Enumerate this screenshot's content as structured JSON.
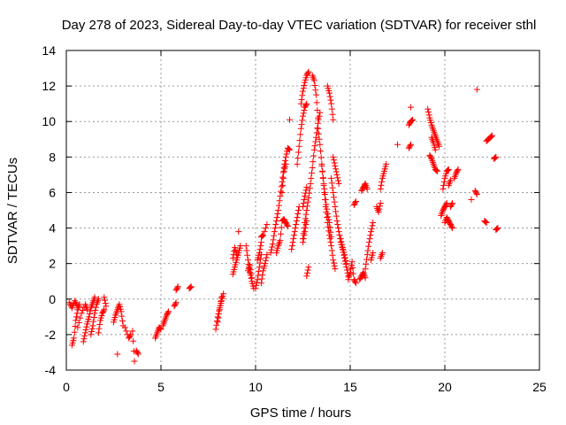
{
  "chart_data": {
    "type": "scatter",
    "title": "Day 278 of 2023, Sidereal Day-to-day VTEC variation (SDTVAR) for receiver sthl",
    "xlabel": "GPS time / hours",
    "ylabel": "SDTVAR / TECUs",
    "xlim": [
      0,
      25
    ],
    "ylim": [
      -4,
      14
    ],
    "x_ticks": [
      0,
      5,
      10,
      15,
      20,
      25
    ],
    "y_ticks": [
      -4,
      -2,
      0,
      2,
      4,
      6,
      8,
      10,
      12,
      14
    ],
    "marker": "+",
    "color": "#ff0000",
    "grid": true,
    "segments": [
      [
        [
          0.15,
          -0.2
        ],
        [
          0.3,
          -0.5
        ],
        [
          0.45,
          -0.1
        ],
        [
          0.6,
          -0.4
        ]
      ],
      [
        [
          0.3,
          -2.6
        ],
        [
          0.4,
          -2.2
        ],
        [
          0.5,
          -1.2
        ],
        [
          0.6,
          -0.6
        ],
        [
          0.7,
          -0.3
        ]
      ],
      [
        [
          0.6,
          -1.6
        ],
        [
          0.8,
          -0.8
        ],
        [
          1.0,
          -0.3
        ],
        [
          1.1,
          -0.6
        ]
      ],
      [
        [
          0.9,
          -2.4
        ],
        [
          1.0,
          -1.9
        ],
        [
          1.1,
          -1.4
        ],
        [
          1.2,
          -1.0
        ],
        [
          1.3,
          -0.5
        ],
        [
          1.4,
          -0.2
        ],
        [
          1.5,
          0.1
        ]
      ],
      [
        [
          1.3,
          -2.0
        ],
        [
          1.4,
          -1.5
        ],
        [
          1.5,
          -0.8
        ],
        [
          1.6,
          -0.3
        ],
        [
          1.7,
          0.0
        ]
      ],
      [
        [
          1.7,
          -1.9
        ],
        [
          1.8,
          -1.2
        ],
        [
          1.9,
          -0.8
        ],
        [
          2.0,
          -0.6
        ]
      ],
      [
        [
          2.0,
          0.1
        ],
        [
          2.1,
          -0.4
        ]
      ],
      [
        [
          2.5,
          -1.3
        ],
        [
          2.6,
          -0.9
        ],
        [
          2.7,
          -0.6
        ],
        [
          2.8,
          -0.3
        ],
        [
          2.9,
          -0.7
        ],
        [
          3.0,
          -1.5
        ]
      ],
      [
        [
          2.7,
          -3.1
        ]
      ],
      [
        [
          3.1,
          -1.6
        ],
        [
          3.3,
          -2.2
        ],
        [
          3.4,
          -2.0
        ]
      ],
      [
        [
          3.5,
          -1.8
        ],
        [
          3.6,
          -3.5
        ]
      ],
      [
        [
          3.7,
          -2.9
        ],
        [
          3.8,
          -3.1
        ]
      ],
      [
        [
          4.7,
          -2.2
        ],
        [
          4.8,
          -1.9
        ],
        [
          4.9,
          -1.6
        ],
        [
          5.0,
          -1.7
        ]
      ],
      [
        [
          5.1,
          -1.5
        ],
        [
          5.2,
          -1.2
        ],
        [
          5.3,
          -0.9
        ],
        [
          5.4,
          -0.7
        ]
      ],
      [
        [
          5.7,
          -0.4
        ],
        [
          5.8,
          -0.2
        ]
      ],
      [
        [
          5.8,
          0.5
        ],
        [
          5.9,
          0.7
        ]
      ],
      [
        [
          6.5,
          0.6
        ],
        [
          6.6,
          0.7
        ]
      ],
      [
        [
          7.9,
          -1.7
        ],
        [
          8.0,
          -1.0
        ],
        [
          8.1,
          -0.5
        ],
        [
          8.2,
          -0.1
        ],
        [
          8.3,
          0.3
        ]
      ],
      [
        [
          8.0,
          -1.3
        ],
        [
          8.1,
          -0.6
        ],
        [
          8.2,
          0.1
        ]
      ],
      [
        [
          8.8,
          1.4
        ],
        [
          8.9,
          1.8
        ],
        [
          9.0,
          2.2
        ],
        [
          9.1,
          2.6
        ],
        [
          9.2,
          3.0
        ]
      ],
      [
        [
          8.8,
          2.3
        ],
        [
          8.9,
          2.9
        ],
        [
          9.0,
          2.5
        ]
      ],
      [
        [
          9.1,
          3.8
        ]
      ],
      [
        [
          9.5,
          3.0
        ],
        [
          9.6,
          2.2
        ],
        [
          9.7,
          1.5
        ],
        [
          9.8,
          1.0
        ],
        [
          9.9,
          0.6
        ]
      ],
      [
        [
          9.6,
          1.6
        ],
        [
          9.7,
          1.9
        ],
        [
          9.8,
          1.2
        ]
      ],
      [
        [
          10.0,
          0.6
        ],
        [
          10.1,
          1.1
        ],
        [
          10.2,
          1.8
        ],
        [
          10.3,
          2.5
        ]
      ],
      [
        [
          10.1,
          2.2
        ],
        [
          10.2,
          2.6
        ],
        [
          10.3,
          3.2
        ]
      ],
      [
        [
          10.3,
          0.9
        ],
        [
          10.4,
          1.6
        ],
        [
          10.5,
          2.0
        ],
        [
          10.6,
          2.5
        ]
      ],
      [
        [
          10.3,
          3.5
        ],
        [
          10.4,
          3.6
        ],
        [
          10.6,
          4.2
        ]
      ],
      [
        [
          10.8,
          2.6
        ],
        [
          10.9,
          3.1
        ],
        [
          11.0,
          3.8
        ],
        [
          11.1,
          4.4
        ],
        [
          11.2,
          5.0
        ],
        [
          11.3,
          5.8
        ],
        [
          11.4,
          6.6
        ],
        [
          11.5,
          7.4
        ],
        [
          11.6,
          8.0
        ],
        [
          11.7,
          8.5
        ],
        [
          11.8,
          8.4
        ]
      ],
      [
        [
          11.1,
          2.6
        ],
        [
          11.2,
          3.0
        ],
        [
          11.3,
          3.3
        ],
        [
          11.4,
          4.4
        ],
        [
          11.5,
          4.5
        ],
        [
          11.6,
          4.3
        ],
        [
          11.7,
          4.1
        ]
      ],
      [
        [
          11.4,
          6.0
        ],
        [
          11.5,
          7.2
        ],
        [
          11.6,
          7.6
        ]
      ],
      [
        [
          11.8,
          10.1
        ]
      ],
      [
        [
          11.9,
          2.8
        ],
        [
          12.0,
          3.4
        ],
        [
          12.1,
          4.0
        ],
        [
          12.2,
          4.6
        ],
        [
          12.3,
          5.2
        ]
      ],
      [
        [
          12.2,
          7.6
        ],
        [
          12.3,
          8.6
        ],
        [
          12.4,
          9.6
        ],
        [
          12.5,
          10.3
        ],
        [
          12.6,
          10.8
        ],
        [
          12.7,
          11.0
        ]
      ],
      [
        [
          12.5,
          3.4
        ],
        [
          12.6,
          4.3
        ],
        [
          12.7,
          5.0
        ],
        [
          12.8,
          5.7
        ],
        [
          12.9,
          6.5
        ],
        [
          13.0,
          7.4
        ],
        [
          13.1,
          8.4
        ],
        [
          13.2,
          9.1
        ],
        [
          13.3,
          9.9
        ],
        [
          13.4,
          10.5
        ]
      ],
      [
        [
          12.4,
          11.0
        ],
        [
          12.5,
          11.7
        ],
        [
          12.6,
          12.2
        ],
        [
          12.7,
          12.6
        ],
        [
          12.8,
          12.8
        ]
      ],
      [
        [
          12.5,
          5.2
        ],
        [
          12.6,
          5.8
        ],
        [
          12.7,
          6.3
        ]
      ],
      [
        [
          12.5,
          3.2
        ],
        [
          12.6,
          3.8
        ],
        [
          12.7,
          4.4
        ]
      ],
      [
        [
          12.7,
          1.3
        ],
        [
          12.8,
          1.8
        ]
      ],
      [
        [
          13.0,
          12.6
        ],
        [
          13.1,
          12.3
        ],
        [
          13.2,
          11.5
        ],
        [
          13.3,
          10.2
        ]
      ],
      [
        [
          13.3,
          9.6
        ],
        [
          13.4,
          8.7
        ],
        [
          13.5,
          7.6
        ],
        [
          13.6,
          6.4
        ],
        [
          13.7,
          5.2
        ],
        [
          13.8,
          4.3
        ],
        [
          13.9,
          3.6
        ],
        [
          14.0,
          3.0
        ],
        [
          14.1,
          2.2
        ],
        [
          14.2,
          1.7
        ]
      ],
      [
        [
          13.5,
          7.5
        ],
        [
          13.6,
          6.5
        ],
        [
          13.7,
          5.6
        ],
        [
          13.8,
          4.8
        ],
        [
          13.9,
          4.3
        ],
        [
          14.0,
          3.5
        ]
      ],
      [
        [
          13.8,
          12.0
        ],
        [
          13.9,
          11.6
        ],
        [
          14.0,
          11.0
        ],
        [
          14.1,
          10.1
        ]
      ],
      [
        [
          14.0,
          6.8
        ],
        [
          14.1,
          6.0
        ],
        [
          14.2,
          5.2
        ],
        [
          14.3,
          4.4
        ],
        [
          14.4,
          3.8
        ],
        [
          14.5,
          3.2
        ],
        [
          14.6,
          2.8
        ],
        [
          14.7,
          2.3
        ],
        [
          14.8,
          1.8
        ],
        [
          14.9,
          1.3
        ]
      ],
      [
        [
          14.1,
          8.0
        ],
        [
          14.2,
          7.5
        ],
        [
          14.3,
          7.0
        ],
        [
          14.4,
          6.5
        ]
      ],
      [
        [
          14.5,
          3.4
        ],
        [
          14.6,
          2.9
        ],
        [
          14.7,
          2.5
        ],
        [
          14.8,
          2.0
        ]
      ],
      [
        [
          14.9,
          1.1
        ],
        [
          15.0,
          1.5
        ],
        [
          15.1,
          2.1
        ],
        [
          15.2,
          1.1
        ],
        [
          15.3,
          0.9
        ]
      ],
      [
        [
          15.2,
          5.3
        ],
        [
          15.3,
          5.5
        ]
      ],
      [
        [
          15.5,
          1.1
        ],
        [
          15.6,
          1.3
        ],
        [
          15.7,
          1.5
        ],
        [
          15.8,
          1.2
        ]
      ],
      [
        [
          15.6,
          6.1
        ],
        [
          15.7,
          6.3
        ],
        [
          15.8,
          6.5
        ],
        [
          15.9,
          6.2
        ]
      ],
      [
        [
          15.8,
          1.7
        ],
        [
          15.9,
          2.5
        ],
        [
          16.0,
          3.2
        ],
        [
          16.1,
          3.8
        ],
        [
          16.2,
          4.3
        ]
      ],
      [
        [
          16.1,
          2.2
        ],
        [
          16.2,
          2.6
        ]
      ],
      [
        [
          16.4,
          5.2
        ],
        [
          16.5,
          4.9
        ],
        [
          16.6,
          5.4
        ]
      ],
      [
        [
          16.6,
          2.3
        ],
        [
          16.7,
          2.6
        ]
      ],
      [
        [
          16.6,
          6.2
        ],
        [
          16.7,
          6.8
        ],
        [
          16.8,
          7.2
        ],
        [
          16.9,
          7.6
        ]
      ],
      [
        [
          17.5,
          8.7
        ]
      ],
      [
        [
          18.1,
          8.5
        ],
        [
          18.2,
          8.7
        ]
      ],
      [
        [
          18.1,
          9.8
        ],
        [
          18.2,
          10.0
        ],
        [
          18.3,
          10.1
        ]
      ],
      [
        [
          18.2,
          10.8
        ]
      ],
      [
        [
          19.1,
          10.7
        ],
        [
          19.2,
          10.2
        ],
        [
          19.3,
          9.8
        ],
        [
          19.4,
          9.5
        ],
        [
          19.5,
          9.2
        ],
        [
          19.6,
          8.9
        ],
        [
          19.7,
          8.6
        ]
      ],
      [
        [
          19.2,
          8.1
        ],
        [
          19.3,
          7.9
        ],
        [
          19.4,
          7.6
        ],
        [
          19.5,
          7.3
        ],
        [
          19.6,
          7.2
        ]
      ],
      [
        [
          19.3,
          9.1
        ],
        [
          19.4,
          8.8
        ],
        [
          19.5,
          8.4
        ]
      ],
      [
        [
          19.8,
          4.7
        ],
        [
          19.9,
          5.0
        ],
        [
          20.0,
          5.2
        ],
        [
          20.1,
          5.4
        ]
      ],
      [
        [
          19.9,
          6.2
        ],
        [
          20.0,
          6.8
        ],
        [
          20.1,
          7.2
        ],
        [
          20.2,
          7.3
        ]
      ],
      [
        [
          20.0,
          4.3
        ],
        [
          20.1,
          4.6
        ],
        [
          20.2,
          4.4
        ],
        [
          20.3,
          4.2
        ],
        [
          20.4,
          4.0
        ]
      ],
      [
        [
          20.3,
          5.2
        ],
        [
          20.4,
          5.4
        ]
      ],
      [
        [
          20.2,
          6.4
        ],
        [
          20.3,
          6.7
        ]
      ],
      [
        [
          20.5,
          6.8
        ],
        [
          20.6,
          7.1
        ],
        [
          20.7,
          7.3
        ]
      ],
      [
        [
          21.4,
          5.6
        ]
      ],
      [
        [
          21.6,
          6.1
        ],
        [
          21.7,
          5.9
        ]
      ],
      [
        [
          21.7,
          11.8
        ]
      ],
      [
        [
          22.1,
          4.4
        ],
        [
          22.2,
          4.3
        ]
      ],
      [
        [
          22.2,
          8.9
        ],
        [
          22.3,
          9.0
        ],
        [
          22.4,
          9.1
        ],
        [
          22.5,
          9.2
        ]
      ],
      [
        [
          22.6,
          7.9
        ],
        [
          22.7,
          8.0
        ]
      ],
      [
        [
          22.7,
          3.9
        ],
        [
          22.8,
          4.0
        ]
      ]
    ]
  }
}
